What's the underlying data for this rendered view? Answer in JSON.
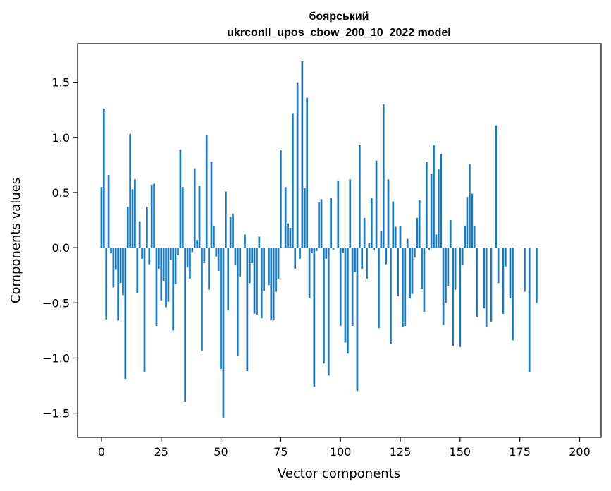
{
  "chart_data": {
    "type": "bar",
    "title_line1": "боярський",
    "title_line2": "ukrconll_upos_cbow_200_10_2022 model",
    "xlabel": "Vector components",
    "ylabel": "Components values",
    "xlim": [
      -10,
      209
    ],
    "ylim": [
      -1.72,
      1.85
    ],
    "xticks": [
      0,
      25,
      50,
      75,
      100,
      125,
      150,
      175,
      200
    ],
    "yticks": [
      -1.5,
      -1.0,
      -0.5,
      0.0,
      0.5,
      1.0,
      1.5
    ],
    "ytick_labels": [
      "−1.5",
      "−1.0",
      "−0.5",
      "0.0",
      "0.5",
      "1.0",
      "1.5"
    ],
    "bar_color": "#1f77b4",
    "values": [
      0.55,
      1.26,
      -0.65,
      0.66,
      -0.05,
      -0.36,
      -0.2,
      -0.66,
      -0.32,
      -0.43,
      -1.19,
      0.37,
      1.03,
      0.53,
      0.62,
      -0.41,
      0.24,
      -0.1,
      -1.13,
      0.37,
      -0.15,
      0.57,
      0.58,
      -0.71,
      -0.19,
      -0.48,
      -0.3,
      -0.54,
      -0.49,
      -0.11,
      -0.75,
      -0.33,
      -0.07,
      0.89,
      0.55,
      -1.4,
      -0.18,
      -0.28,
      -0.04,
      0.72,
      0.07,
      0.56,
      -0.94,
      -0.14,
      1.02,
      -0.38,
      0.78,
      0.2,
      -0.08,
      -0.21,
      -1.1,
      -1.54,
      0.51,
      -0.57,
      0.28,
      0.31,
      -0.16,
      -0.98,
      -0.26,
      0.0,
      0.12,
      -1.12,
      -0.32,
      -0.14,
      -0.6,
      -0.61,
      0.1,
      -0.64,
      -0.39,
      0.0,
      -0.34,
      -0.66,
      -0.66,
      -0.4,
      -0.28,
      0.89,
      0.0,
      0.55,
      0.22,
      0.18,
      1.22,
      -0.19,
      1.5,
      -0.1,
      1.69,
      0.54,
      1.36,
      -0.46,
      -0.05,
      -1.26,
      -0.03,
      0.41,
      0.44,
      -1.05,
      -0.1,
      -1.16,
      0.45,
      -0.02,
      0.0,
      0.61,
      -0.71,
      -0.05,
      -0.86,
      -0.96,
      0.62,
      -0.71,
      -0.22,
      -1.3,
      0.93,
      -0.19,
      0.27,
      -0.28,
      0.04,
      0.45,
      -0.02,
      0.79,
      -0.73,
      0.15,
      1.3,
      -0.15,
      0.62,
      -0.87,
      0.42,
      0.19,
      -0.44,
      0.2,
      -0.72,
      -0.71,
      0.08,
      -0.46,
      -0.42,
      -0.09,
      0.27,
      0.43,
      -0.37,
      -0.58,
      0.78,
      -0.02,
      0.67,
      0.93,
      0.12,
      0.71,
      0.85,
      -0.7,
      -0.5,
      -0.35,
      0.25,
      -0.89,
      -0.38,
      0.0,
      -0.9,
      -0.16,
      0.2,
      0.46,
      0.76,
      0.49,
      0.2,
      -0.63,
      0.0,
      0.0,
      -0.55,
      -0.72,
      0.0,
      -0.67,
      0.0,
      1.11,
      -0.32,
      0.0,
      -0.6,
      -0.17,
      0.0,
      -0.46,
      -0.84,
      0.0,
      0.0,
      0.0,
      0.0,
      -0.4,
      0.0,
      -1.13,
      0.0,
      0.0,
      -0.5,
      0.0,
      0.0,
      0.0,
      0.0,
      0.0,
      0.0,
      0.0,
      0.0,
      0.0,
      0.0,
      0.0,
      0.0,
      0.0,
      0.0,
      0.0,
      0.0,
      0.0,
      0.0,
      0.0
    ]
  }
}
